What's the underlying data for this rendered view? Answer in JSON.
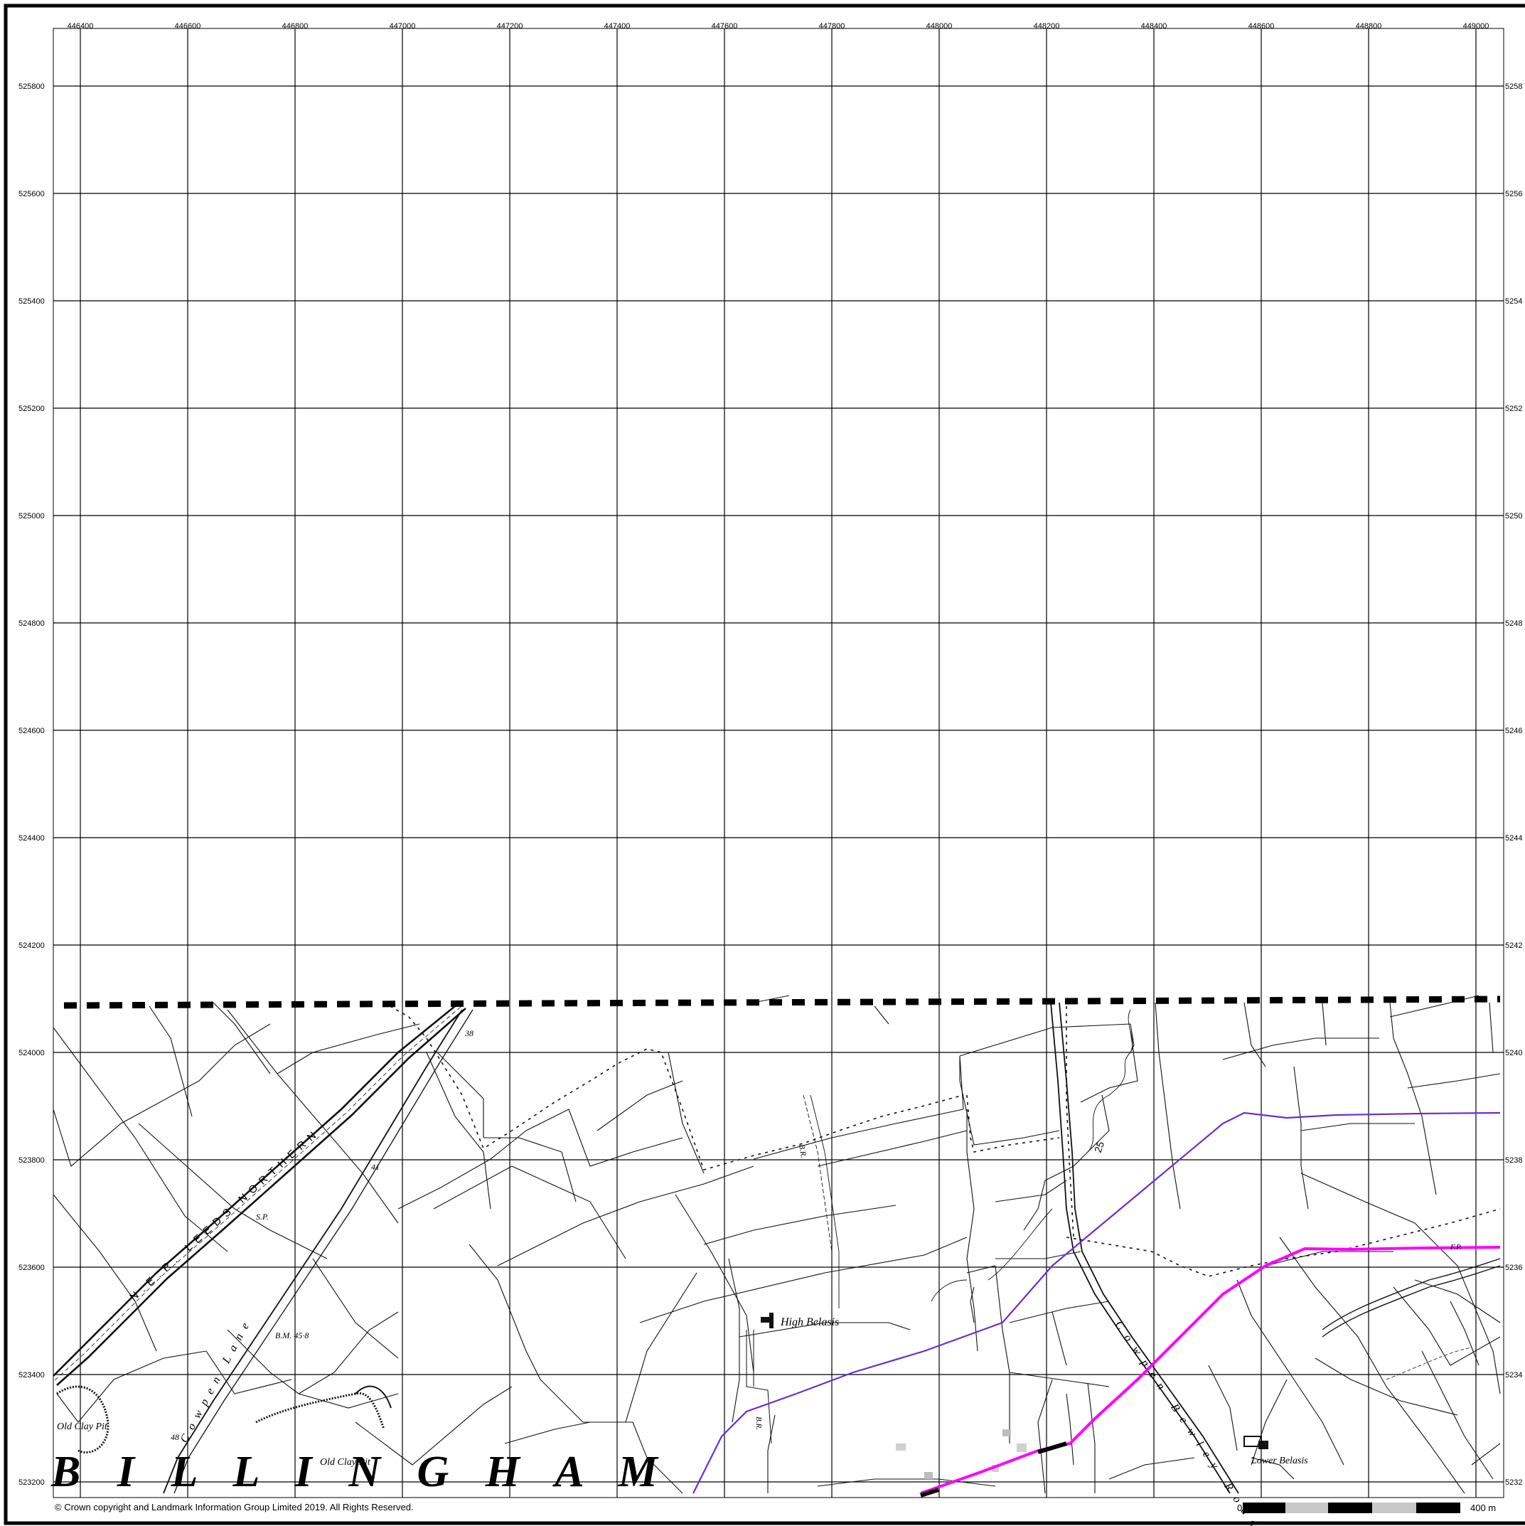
{
  "map": {
    "grid": {
      "easting_labels": [
        "446400",
        "446600",
        "446800",
        "447000",
        "447200",
        "447400",
        "447600",
        "447800",
        "448000",
        "448200",
        "448400",
        "448600",
        "448800",
        "449000"
      ],
      "northing_labels": [
        "525800",
        "525600",
        "525400",
        "525200",
        "525000",
        "524800",
        "524600",
        "524400",
        "524200",
        "524000",
        "523800",
        "523600",
        "523400",
        "523200"
      ],
      "northing_labels_right": [
        "5258",
        "5256",
        "5254",
        "5252",
        "5250",
        "5248",
        "5246",
        "5244",
        "5242",
        "5240",
        "5238",
        "5236",
        "5234",
        "5232"
      ]
    },
    "place_labels": {
      "billingham": "B I L L I N G H A M",
      "high_belasis": "High Belasis",
      "lower_belasis": "Lower Belasis",
      "cowpen_lane": "Cowpen Lane",
      "cowpen_bewley_road": "Cowpen Bewley Road",
      "railway": "N.E.R. LEEDS NORTHERN",
      "old_clay_pit_1": "Old Clay Pit",
      "old_clay_pit_2": "Old Clay Pit",
      "bm": "B.M. 45·8",
      "sp": "S.P.",
      "br_1": "B.R.",
      "br_2": "B.R.",
      "height_38": "38",
      "height_41": "41",
      "height_48": "48",
      "contour_25": "25",
      "fp": "F.P."
    },
    "copyright": "© Crown copyright and Landmark Information Group Limited 2019.  All Rights Reserved.",
    "scale_bar": {
      "start_label": "0",
      "end_label": "400 m"
    },
    "colors": {
      "boundary": "#000000",
      "purple_line": "#6a2bd6",
      "magenta_line": "#ff00ff",
      "grid": "#000000"
    }
  }
}
